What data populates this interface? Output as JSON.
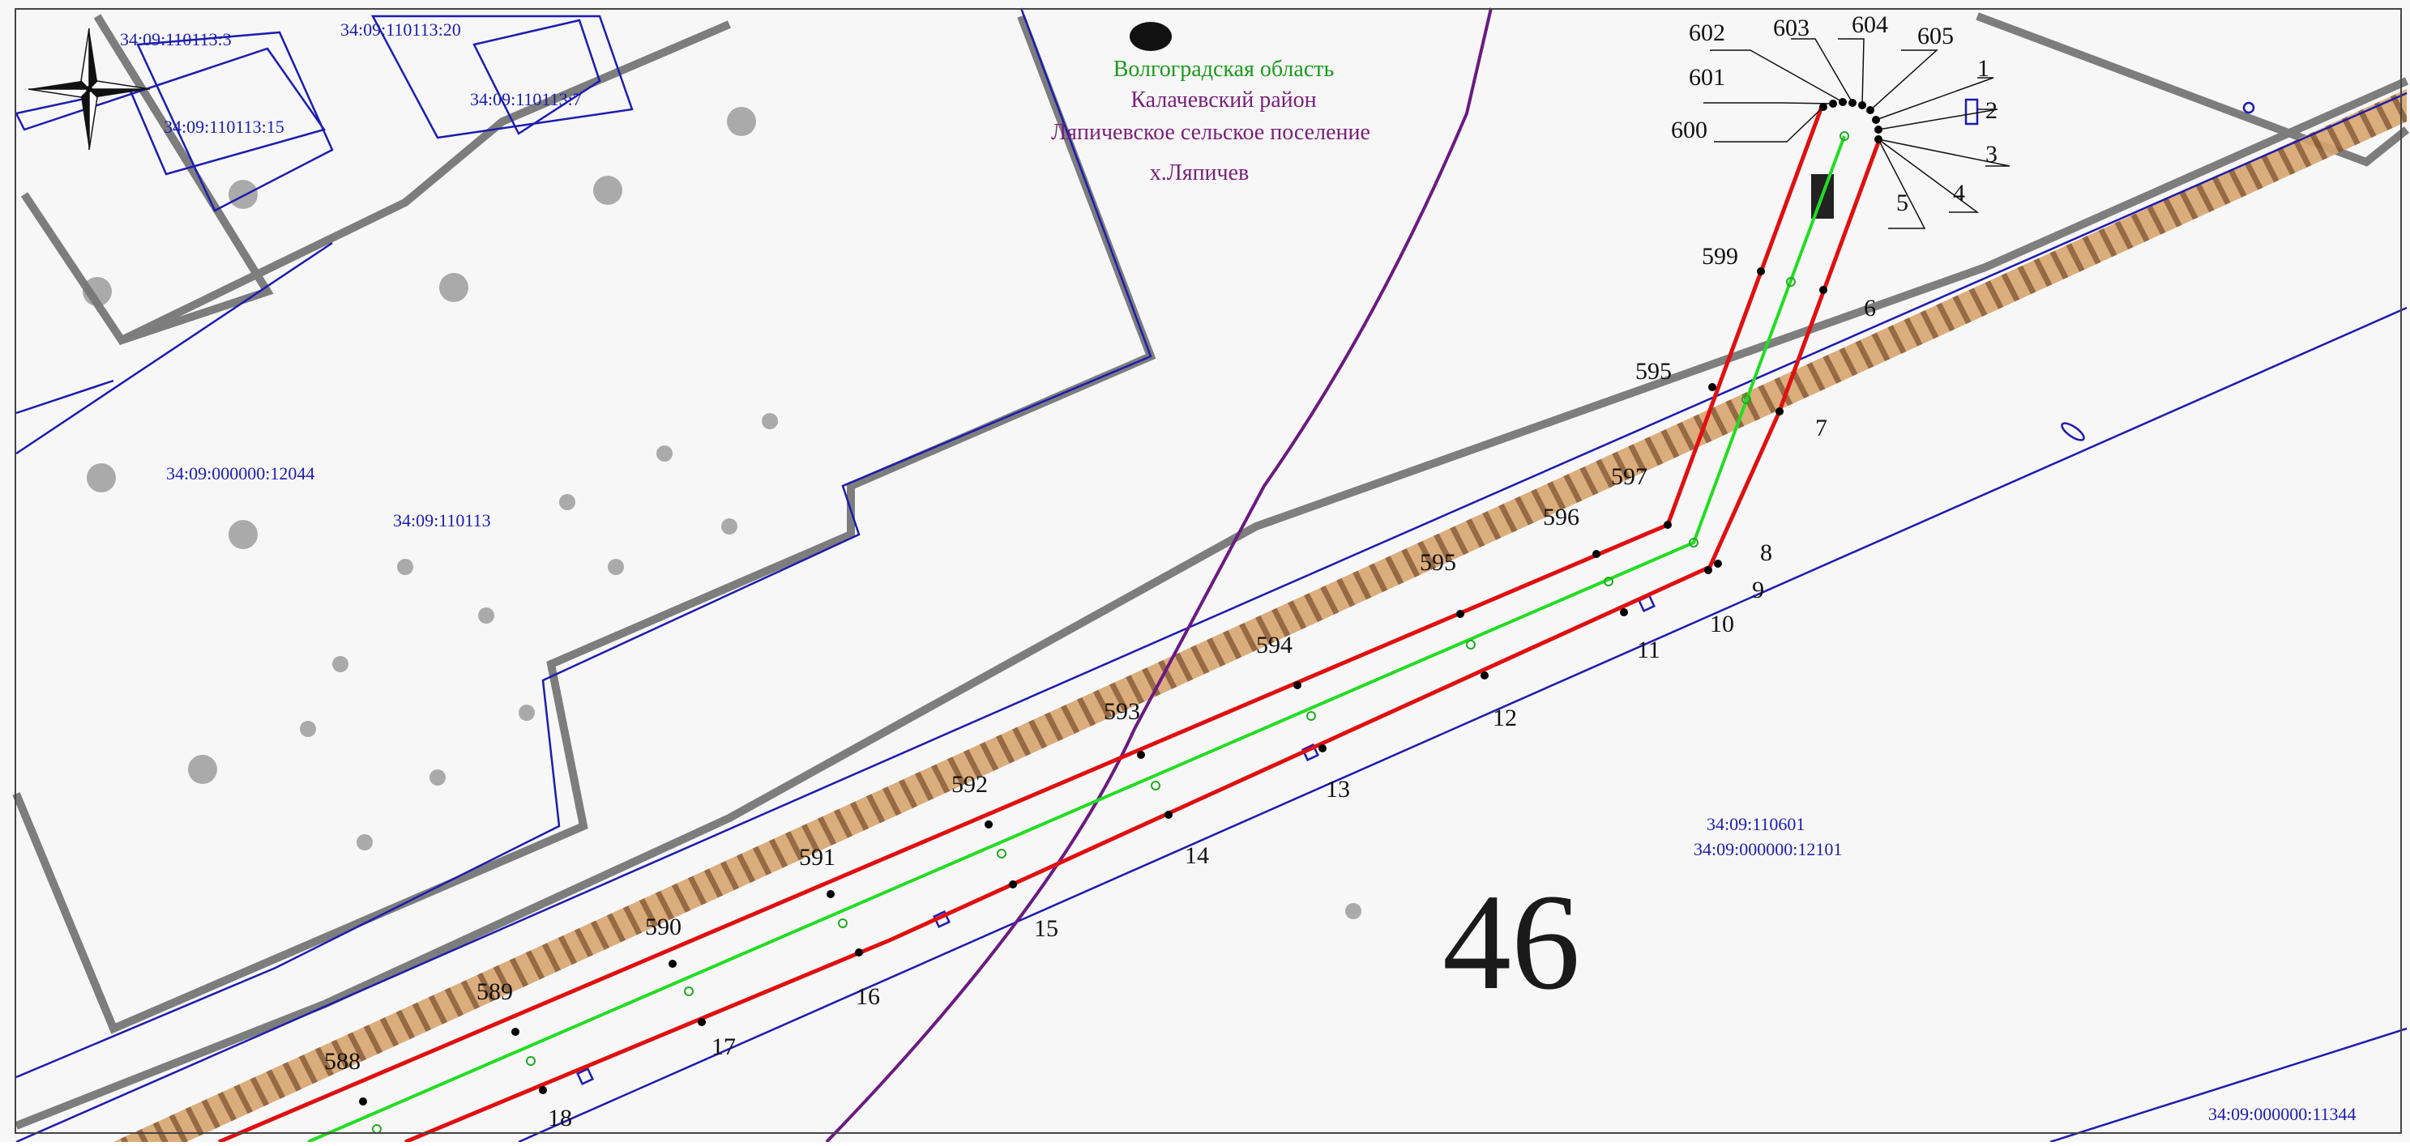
{
  "region_labels": [
    {
      "text": "Волгоградская область",
      "color": "#1a9a1a"
    },
    {
      "text": "Калачевский район",
      "color": "#7a1f7a"
    },
    {
      "text": "Ляпичевское сельское поселение",
      "color": "#7a1f7a"
    },
    {
      "text": "х.Ляпичев",
      "color": "#7a1f7a"
    }
  ],
  "cadastral_labels": [
    "34:09:110113:3",
    "34:09:110113:20",
    "34:09:110113:15",
    "34:09:110113:7",
    "34:09:000000:12044",
    "34:09:110113",
    "34:09:110601",
    "34:09:000000:12101",
    "34:09:000000:11344"
  ],
  "block_number": "46",
  "outer_points": [
    "600",
    "601",
    "602",
    "603",
    "604",
    "605",
    "1",
    "2",
    "3",
    "4",
    "5"
  ],
  "upper_line_points": [
    "599",
    "595",
    "597",
    "596",
    "595",
    "594",
    "593",
    "592",
    "591",
    "590",
    "589",
    "588"
  ],
  "lower_line_points": [
    "6",
    "7",
    "8",
    "9",
    "10",
    "11",
    "12",
    "13",
    "14",
    "15",
    "16",
    "17",
    "18"
  ],
  "legend_colors": {
    "boundary": "#e01010",
    "axis": "#22dd22",
    "cadastre": "#1c1cb0",
    "admin_border": "#6b1a80",
    "railway": "#c08850"
  },
  "icons": [
    "compass-rose-icon"
  ]
}
